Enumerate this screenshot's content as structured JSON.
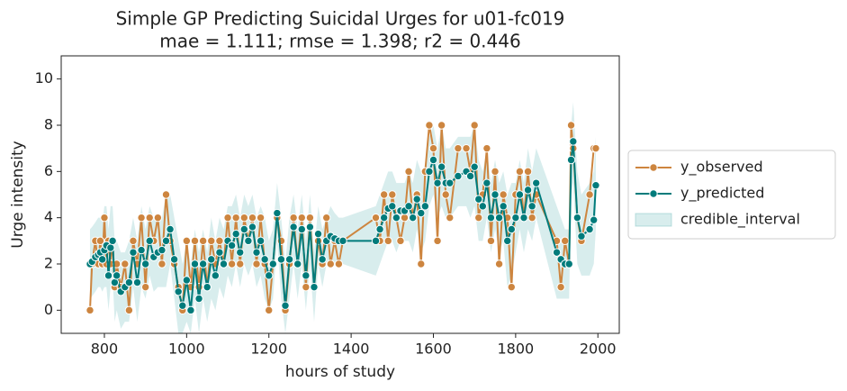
{
  "chart_data": {
    "type": "line",
    "title": "Simple GP Predicting Suicidal Urges for u01-fc019",
    "subtitle": "mae = 1.111; rmse = 1.398; r2 = 0.446",
    "x_label": "hours of study",
    "y_label": "Urge intensity",
    "xlim": [
      695,
      2052
    ],
    "ylim": [
      -1,
      11
    ],
    "xticks": [
      800,
      1000,
      1200,
      1400,
      1600,
      1800,
      2000
    ],
    "yticks": [
      0,
      2,
      4,
      6,
      8,
      10
    ],
    "legend": "right",
    "x": [
      765,
      770,
      778,
      785,
      790,
      795,
      800,
      805,
      810,
      815,
      820,
      825,
      830,
      840,
      850,
      860,
      870,
      880,
      890,
      900,
      910,
      920,
      930,
      940,
      950,
      960,
      970,
      980,
      990,
      1000,
      1010,
      1020,
      1030,
      1040,
      1050,
      1060,
      1070,
      1080,
      1090,
      1100,
      1110,
      1120,
      1130,
      1140,
      1150,
      1160,
      1170,
      1180,
      1190,
      1200,
      1210,
      1220,
      1230,
      1240,
      1250,
      1260,
      1270,
      1280,
      1290,
      1300,
      1310,
      1320,
      1330,
      1340,
      1350,
      1360,
      1370,
      1380,
      1460,
      1470,
      1480,
      1490,
      1500,
      1510,
      1520,
      1530,
      1540,
      1550,
      1560,
      1570,
      1580,
      1590,
      1600,
      1610,
      1620,
      1630,
      1640,
      1660,
      1680,
      1690,
      1700,
      1710,
      1720,
      1730,
      1740,
      1750,
      1760,
      1770,
      1780,
      1790,
      1800,
      1810,
      1820,
      1830,
      1840,
      1850,
      1900,
      1910,
      1920,
      1930,
      1935,
      1940,
      1950,
      1960,
      1980,
      1990,
      1995
    ],
    "series": [
      {
        "name": "y_observed",
        "color": "#cd853f",
        "values": [
          0,
          2,
          3,
          2,
          3,
          2,
          4,
          2,
          3,
          2,
          3,
          1,
          2,
          1,
          2,
          0,
          3,
          2,
          4,
          1,
          4,
          3,
          4,
          2,
          5,
          3,
          2,
          1,
          0,
          3,
          1,
          3,
          1,
          3,
          1,
          3,
          2,
          3,
          2,
          4,
          2,
          4,
          2,
          4,
          3,
          4,
          2,
          4,
          2,
          0,
          2,
          4,
          3,
          0,
          2,
          4,
          2,
          4,
          1,
          4,
          1,
          3,
          2,
          4,
          2,
          3,
          2,
          3,
          4,
          3,
          5,
          3,
          5,
          4,
          3,
          4,
          6,
          4,
          5,
          2,
          6,
          8,
          7,
          3,
          8,
          5,
          4,
          7,
          7,
          6,
          8,
          4,
          5,
          7,
          3,
          6,
          2,
          5,
          4,
          1,
          5,
          6,
          4,
          6,
          4,
          5,
          3,
          1,
          3,
          2,
          8,
          7,
          4,
          3,
          5,
          7,
          7
        ]
      },
      {
        "name": "y_predicted",
        "color": "#007b7b",
        "values": [
          2.0,
          2.1,
          2.3,
          2.4,
          2.5,
          2.2,
          2.6,
          2.8,
          1.5,
          2.7,
          3.0,
          1.2,
          1.5,
          0.8,
          1.0,
          1.2,
          2.5,
          1.2,
          2.6,
          2.0,
          3.0,
          2.3,
          2.5,
          2.6,
          3.0,
          3.5,
          2.2,
          0.8,
          0.2,
          1.3,
          0.0,
          2.0,
          0.5,
          2.0,
          1.0,
          2.2,
          1.5,
          2.5,
          2.0,
          3.0,
          2.8,
          3.3,
          2.5,
          3.5,
          3.0,
          3.6,
          2.5,
          3.0,
          2.2,
          1.5,
          2.0,
          4.2,
          2.2,
          0.2,
          2.2,
          3.6,
          2.0,
          3.5,
          1.5,
          3.6,
          1.0,
          3.3,
          2.2,
          3.0,
          3.2,
          3.1,
          3.0,
          3.0,
          3.0,
          3.5,
          4.0,
          4.4,
          4.5,
          4.0,
          4.3,
          4.3,
          4.5,
          4.0,
          4.8,
          4.2,
          4.5,
          6.0,
          6.5,
          5.5,
          6.2,
          5.5,
          5.5,
          5.8,
          6.0,
          5.8,
          6.2,
          4.8,
          4.5,
          5.5,
          4.0,
          5.0,
          4.0,
          4.5,
          3.0,
          3.5,
          4.0,
          5.0,
          4.0,
          5.2,
          4.5,
          5.5,
          2.5,
          2.2,
          2.0,
          2.0,
          6.5,
          7.3,
          4.0,
          3.2,
          3.5,
          3.9,
          5.4
        ]
      }
    ],
    "interval": {
      "name": "credible_interval",
      "color": "#7fc3c3",
      "lower": [
        0.5,
        0.6,
        0.8,
        1.0,
        1.0,
        0.8,
        1.0,
        1.0,
        0.0,
        1.0,
        1.5,
        -0.5,
        0.0,
        -0.8,
        -0.5,
        -0.5,
        1.0,
        -0.5,
        1.0,
        0.5,
        1.5,
        0.8,
        1.0,
        1.0,
        1.0,
        2.0,
        0.5,
        -1.0,
        -1.0,
        -0.5,
        -1.0,
        0.5,
        -1.0,
        0.5,
        -0.5,
        0.5,
        0.0,
        1.0,
        0.5,
        1.5,
        1.0,
        2.0,
        1.0,
        2.0,
        1.5,
        2.0,
        1.0,
        1.5,
        0.5,
        0.0,
        0.5,
        3.0,
        0.5,
        -1.0,
        0.5,
        2.0,
        0.5,
        2.0,
        0.0,
        2.0,
        -0.5,
        2.0,
        1.0,
        2.0,
        2.0,
        2.0,
        2.0,
        2.0,
        1.5,
        2.0,
        2.5,
        3.0,
        3.0,
        2.5,
        3.0,
        3.0,
        3.0,
        2.5,
        3.5,
        2.5,
        3.0,
        4.5,
        5.0,
        4.0,
        4.5,
        4.0,
        4.0,
        4.5,
        4.5,
        4.0,
        4.5,
        3.0,
        3.0,
        4.0,
        2.5,
        3.5,
        2.5,
        3.0,
        1.0,
        1.5,
        2.5,
        3.5,
        2.5,
        3.5,
        3.0,
        4.0,
        0.5,
        0.5,
        0.5,
        0.5,
        5.0,
        5.5,
        2.0,
        1.5,
        1.5,
        2.0,
        3.5
      ],
      "upper": [
        3.5,
        3.6,
        3.8,
        4.0,
        4.0,
        3.8,
        4.5,
        4.5,
        3.5,
        4.5,
        4.5,
        3.0,
        3.0,
        2.5,
        2.5,
        3.0,
        4.0,
        3.0,
        4.5,
        3.5,
        4.5,
        4.0,
        4.0,
        4.0,
        5.0,
        5.0,
        4.0,
        3.0,
        2.0,
        3.0,
        2.0,
        3.5,
        2.5,
        3.5,
        2.5,
        4.0,
        3.0,
        4.0,
        3.5,
        4.5,
        4.5,
        5.0,
        4.0,
        5.0,
        4.5,
        5.0,
        4.0,
        4.5,
        4.0,
        3.0,
        3.5,
        5.5,
        4.0,
        2.0,
        4.0,
        5.0,
        3.5,
        5.0,
        3.0,
        5.0,
        2.5,
        4.5,
        3.5,
        4.0,
        4.5,
        4.2,
        4.0,
        4.0,
        4.5,
        5.0,
        5.5,
        6.0,
        6.0,
        5.5,
        5.5,
        5.5,
        6.0,
        5.5,
        6.5,
        6.0,
        6.0,
        7.5,
        8.0,
        7.0,
        8.0,
        7.0,
        7.0,
        7.5,
        7.5,
        7.5,
        8.0,
        6.5,
        6.0,
        7.0,
        5.5,
        6.5,
        5.5,
        6.0,
        5.0,
        5.5,
        5.5,
        6.5,
        5.5,
        7.0,
        6.0,
        7.0,
        4.5,
        4.0,
        3.5,
        3.5,
        8.0,
        9.0,
        6.0,
        5.0,
        5.5,
        6.0,
        7.5
      ]
    }
  }
}
